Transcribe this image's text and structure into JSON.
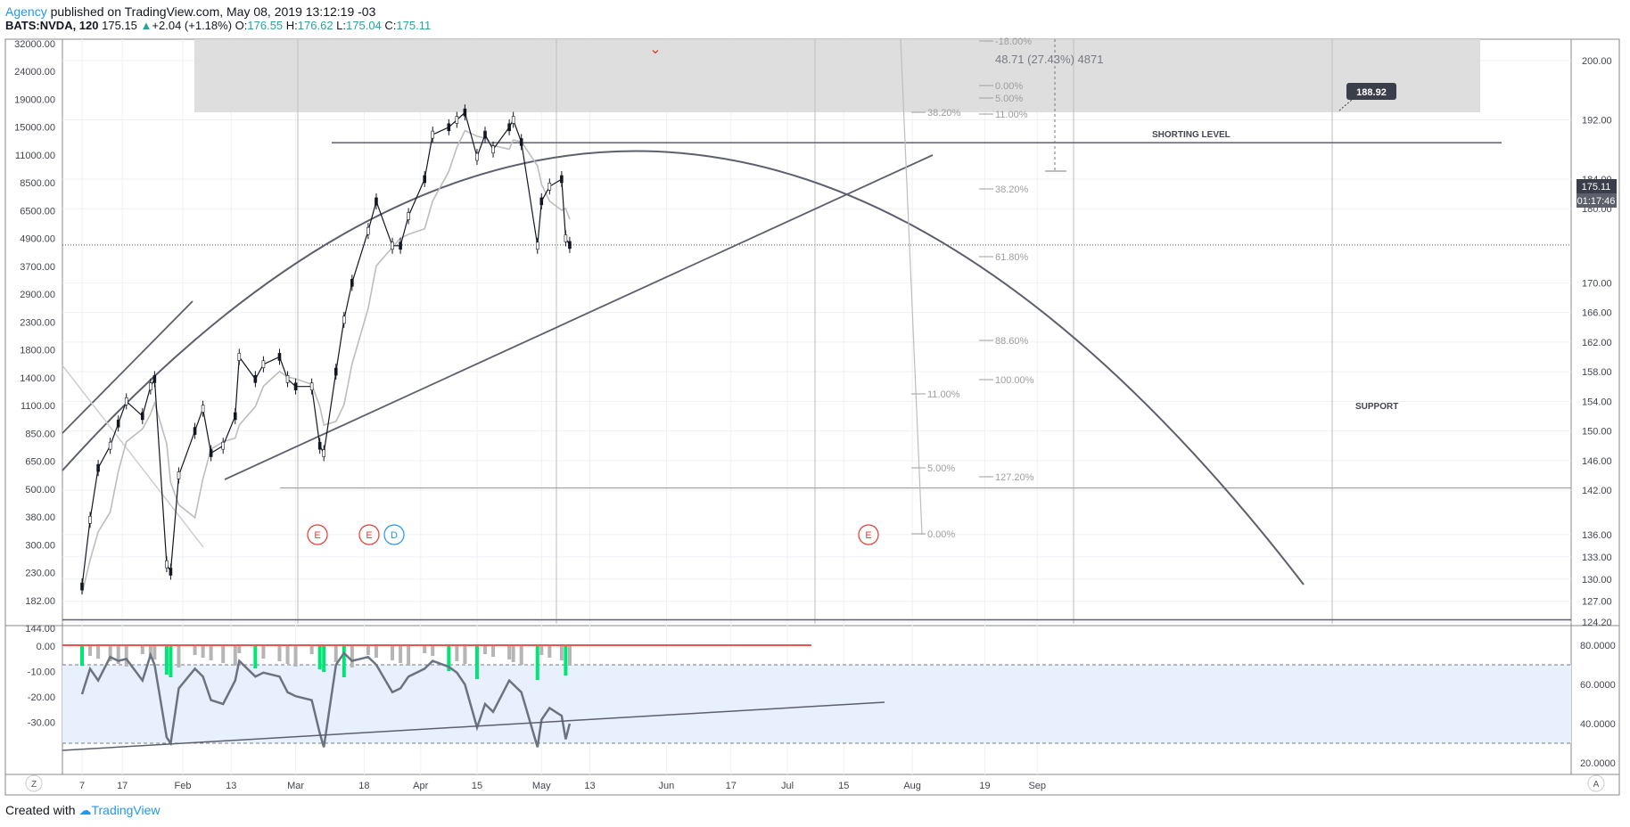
{
  "header": {
    "author": "Agency",
    "published_text": " published on TradingView.com, May 08, 2019 13:12:19 -03",
    "symbol": "BATS:NVDA, 120",
    "last": "175.15",
    "change": "+2.04 (+1.18%)",
    "open_label": "O:",
    "open": "176.55",
    "high_label": "H:",
    "high": "176.62",
    "low_label": "L:",
    "low": "175.04",
    "close_label": "C:",
    "close": "175.11"
  },
  "footer": {
    "created_with": "Created with",
    "brand": "TradingView"
  },
  "colors": {
    "accent": "#2196f3",
    "up": "#26a69a",
    "down": "#ef5350",
    "hist_green": "#00e676",
    "band_fill": "#e8f0fe"
  },
  "chart_data": [
    {
      "type": "line",
      "title": "",
      "symbol": "BATS:NVDA",
      "interval": "120",
      "x_ticks": [
        "7",
        "17",
        "Feb",
        "13",
        "Mar",
        "18",
        "Apr",
        "15",
        "May",
        "13",
        "Jun",
        "17",
        "Jul",
        "15",
        "Aug",
        "19",
        "Sep"
      ],
      "y_right_ticks": [
        "200.00",
        "192.00",
        "184.00",
        "180.00",
        "175.11",
        "170.00",
        "166.00",
        "162.00",
        "158.00",
        "154.00",
        "150.00",
        "146.00",
        "142.00",
        "136.00",
        "133.00",
        "130.00",
        "127.00",
        "124.20"
      ],
      "y_left_ticks": [
        "32000.00",
        "24000.00",
        "19000.00",
        "15000.00",
        "11000.00",
        "8500.00",
        "6500.00",
        "4900.00",
        "3700.00",
        "2900.00",
        "2300.00",
        "1800.00",
        "1400.00",
        "1100.00",
        "850.00",
        "650.00",
        "500.00",
        "380.00",
        "300.00",
        "230.00",
        "182.00",
        "144.00"
      ],
      "last_price": "175.11",
      "countdown": "01:17:46",
      "price_path": [
        [
          "Jan 7",
          129
        ],
        [
          "Jan 9",
          138
        ],
        [
          "Jan 11",
          145
        ],
        [
          "Jan 14",
          148
        ],
        [
          "Jan 16",
          151
        ],
        [
          "Jan 18",
          154
        ],
        [
          "Jan 22",
          152
        ],
        [
          "Jan 24",
          156
        ],
        [
          "Jan 25",
          157
        ],
        [
          "Jan 28",
          132
        ],
        [
          "Jan 29",
          131
        ],
        [
          "Jan 31",
          144
        ],
        [
          "Feb 4",
          150
        ],
        [
          "Feb 6",
          153
        ],
        [
          "Feb 8",
          147
        ],
        [
          "Feb 11",
          148
        ],
        [
          "Feb 14",
          152
        ],
        [
          "Feb 15",
          160
        ],
        [
          "Feb 19",
          157
        ],
        [
          "Feb 21",
          159
        ],
        [
          "Feb 25",
          160
        ],
        [
          "Feb 27",
          157
        ],
        [
          "Mar 1",
          156
        ],
        [
          "Mar 5",
          156
        ],
        [
          "Mar 7",
          148
        ],
        [
          "Mar 8",
          147
        ],
        [
          "Mar 11",
          158
        ],
        [
          "Mar 13",
          165
        ],
        [
          "Mar 15",
          170
        ],
        [
          "Mar 19",
          177
        ],
        [
          "Mar 21",
          181
        ],
        [
          "Mar 25",
          175
        ],
        [
          "Mar 27",
          175
        ],
        [
          "Mar 29",
          179
        ],
        [
          "Apr 2",
          184
        ],
        [
          "Apr 4",
          190
        ],
        [
          "Apr 8",
          191
        ],
        [
          "Apr 10",
          192
        ],
        [
          "Apr 12",
          193
        ],
        [
          "Apr 15",
          187
        ],
        [
          "Apr 17",
          190
        ],
        [
          "Apr 19",
          188
        ],
        [
          "Apr 23",
          191
        ],
        [
          "Apr 24",
          192
        ],
        [
          "Apr 26",
          189
        ],
        [
          "Apr 30",
          175
        ],
        [
          "May 1",
          181
        ],
        [
          "May 3",
          183
        ],
        [
          "May 6",
          184
        ],
        [
          "May 7",
          176
        ],
        [
          "May 8",
          175.11
        ]
      ],
      "annotations": {
        "ranges": [
          "48.71 (27.43%) 4871"
        ],
        "price_tag": "188.92",
        "labels": [
          "SHORTING LEVEL",
          "SUPPORT"
        ],
        "fib_labels": [
          "-18.00%",
          "0.00%",
          "5.00%",
          "11.00%",
          "38.20%",
          "38.20%",
          "61.80%",
          "88.60%",
          "100.00%",
          "11.00%",
          "5.00%",
          "127.20%",
          "0.00%"
        ],
        "event_markers": [
          "E",
          "E",
          "D",
          "E"
        ]
      }
    },
    {
      "type": "line",
      "title": "",
      "y_left_ticks": [
        "0.00",
        "-10.00",
        "-20.00",
        "-30.00"
      ],
      "y_right_ticks": [
        "80.0000",
        "60.0000",
        "40.0000",
        "20.0000"
      ],
      "band": [
        30,
        70
      ],
      "oscillator_path": [
        [
          "Jan 7",
          55
        ],
        [
          "Jan 9",
          68
        ],
        [
          "Jan 11",
          62
        ],
        [
          "Jan 14",
          74
        ],
        [
          "Jan 16",
          72
        ],
        [
          "Jan 18",
          73
        ],
        [
          "Jan 22",
          62
        ],
        [
          "Jan 24",
          75
        ],
        [
          "Jan 25",
          70
        ],
        [
          "Jan 28",
          33
        ],
        [
          "Jan 29",
          30
        ],
        [
          "Jan 31",
          58
        ],
        [
          "Feb 4",
          68
        ],
        [
          "Feb 6",
          64
        ],
        [
          "Feb 8",
          52
        ],
        [
          "Feb 11",
          50
        ],
        [
          "Feb 14",
          62
        ],
        [
          "Feb 15",
          72
        ],
        [
          "Feb 19",
          64
        ],
        [
          "Feb 21",
          66
        ],
        [
          "Feb 25",
          64
        ],
        [
          "Feb 27",
          56
        ],
        [
          "Mar 1",
          54
        ],
        [
          "Mar 5",
          52
        ],
        [
          "Mar 7",
          35
        ],
        [
          "Mar 8",
          28
        ],
        [
          "Mar 11",
          70
        ],
        [
          "Mar 13",
          76
        ],
        [
          "Mar 15",
          72
        ],
        [
          "Mar 19",
          74
        ],
        [
          "Mar 21",
          70
        ],
        [
          "Mar 25",
          56
        ],
        [
          "Mar 27",
          58
        ],
        [
          "Mar 29",
          64
        ],
        [
          "Apr 2",
          68
        ],
        [
          "Apr 4",
          72
        ],
        [
          "Apr 8",
          69
        ],
        [
          "Apr 10",
          66
        ],
        [
          "Apr 12",
          60
        ],
        [
          "Apr 15",
          38
        ],
        [
          "Apr 17",
          50
        ],
        [
          "Apr 19",
          46
        ],
        [
          "Apr 23",
          62
        ],
        [
          "Apr 24",
          60
        ],
        [
          "Apr 26",
          56
        ],
        [
          "Apr 30",
          28
        ],
        [
          "May 1",
          42
        ],
        [
          "May 3",
          48
        ],
        [
          "May 6",
          44
        ],
        [
          "May 7",
          32
        ],
        [
          "May 8",
          40
        ]
      ]
    }
  ],
  "corner_buttons": {
    "left": "Z",
    "right": "A"
  }
}
